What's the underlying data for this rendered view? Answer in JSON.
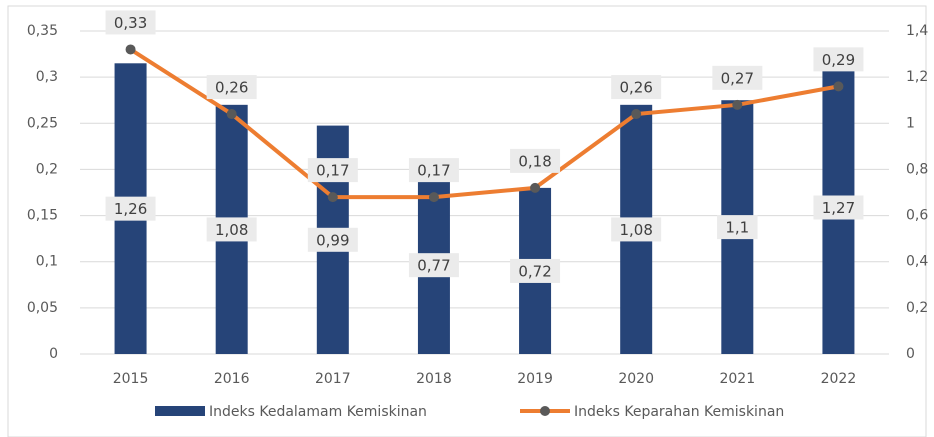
{
  "chart_data": {
    "type": "bar_line",
    "categories": [
      "2015",
      "2016",
      "2017",
      "2018",
      "2019",
      "2020",
      "2021",
      "2022"
    ],
    "series": [
      {
        "name": "Indeks Kedalamam Kemiskinan",
        "type": "bar",
        "axis": "y2",
        "color": "#264478",
        "values": [
          1.26,
          1.08,
          0.99,
          0.77,
          0.72,
          1.08,
          1.1,
          1.27
        ],
        "value_labels": [
          "1,26",
          "1,08",
          "0,99",
          "0,77",
          "0,72",
          "1,08",
          "1,1",
          "1,27"
        ]
      },
      {
        "name": "Indeks Keparahan Kemiskinan",
        "type": "line",
        "axis": "y",
        "color": "#ed7d31",
        "marker_color": "#595959",
        "values": [
          0.33,
          0.26,
          0.17,
          0.17,
          0.18,
          0.26,
          0.27,
          0.29
        ],
        "value_labels": [
          "0,33",
          "0,26",
          "0,17",
          "0,17",
          "0,18",
          "0,26",
          "0,27",
          "0,29"
        ]
      }
    ],
    "ylim": [
      0,
      0.35
    ],
    "yticks": [
      0,
      {
        "value": 0.05,
        "label": "0,05"
      },
      {
        "value": 0.1,
        "label": "0,1"
      },
      {
        "value": 0.15,
        "label": "0,15"
      },
      {
        "value": 0.2,
        "label": "0,2"
      },
      {
        "value": 0.25,
        "label": "0,25"
      },
      {
        "value": 0.3,
        "label": "0,3"
      },
      {
        "value": 0.35,
        "label": "0,35"
      }
    ],
    "y2lim": [
      0,
      1.4
    ],
    "y2ticks": [
      0,
      {
        "value": 0.2,
        "label": "0,2"
      },
      {
        "value": 0.4,
        "label": "0,4"
      },
      {
        "value": 0.6,
        "label": "0,6"
      },
      {
        "value": 0.8,
        "label": "0,8"
      },
      1,
      {
        "value": 1.2,
        "label": "1,2"
      },
      {
        "value": 1.4,
        "label": "1,4"
      }
    ],
    "legend": "bottom"
  }
}
